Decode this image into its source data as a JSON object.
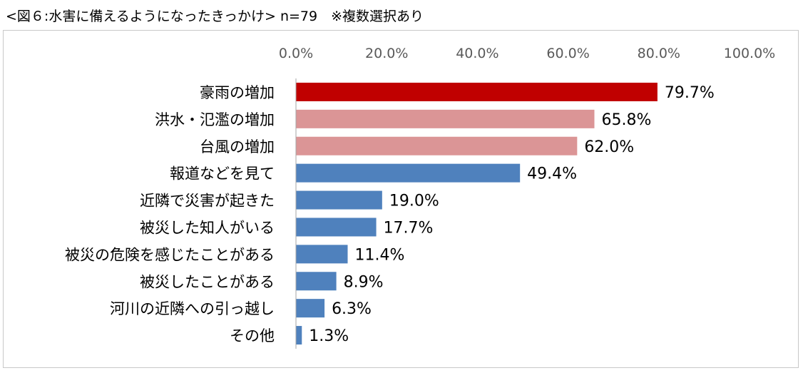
{
  "page": {
    "title": "<図６:水害に備えるようになったきっかけ> n=79　※複数選択あり"
  },
  "colors": {
    "highlight": "#c00000",
    "secondary": "#db9596",
    "primary": "#4f81bd",
    "axis": "#a6a6a6"
  },
  "chart_data": {
    "type": "bar",
    "orientation": "horizontal",
    "xlim": [
      0,
      100
    ],
    "x_ticks": [
      "0.0%",
      "20.0%",
      "40.0%",
      "60.0%",
      "80.0%",
      "100.0%"
    ],
    "x_axis_position": "top",
    "grid": false,
    "categories": [
      "豪雨の増加",
      "洪水・氾濫の増加",
      "台風の増加",
      "報道などを見て",
      "近隣で災害が起きた",
      "被災した知人がいる",
      "被災の危険を感じたことがある",
      "被災したことがある",
      "河川の近隣への引っ越し",
      "その他"
    ],
    "values": [
      79.7,
      65.8,
      62.0,
      49.4,
      19.0,
      17.7,
      11.4,
      8.9,
      6.3,
      1.3
    ],
    "value_labels": [
      "79.7%",
      "65.8%",
      "62.0%",
      "49.4%",
      "19.0%",
      "17.7%",
      "11.4%",
      "8.9%",
      "6.3%",
      "1.3%"
    ],
    "bar_colors": [
      "#c00000",
      "#db9596",
      "#db9596",
      "#4f81bd",
      "#4f81bd",
      "#4f81bd",
      "#4f81bd",
      "#4f81bd",
      "#4f81bd",
      "#4f81bd"
    ]
  }
}
